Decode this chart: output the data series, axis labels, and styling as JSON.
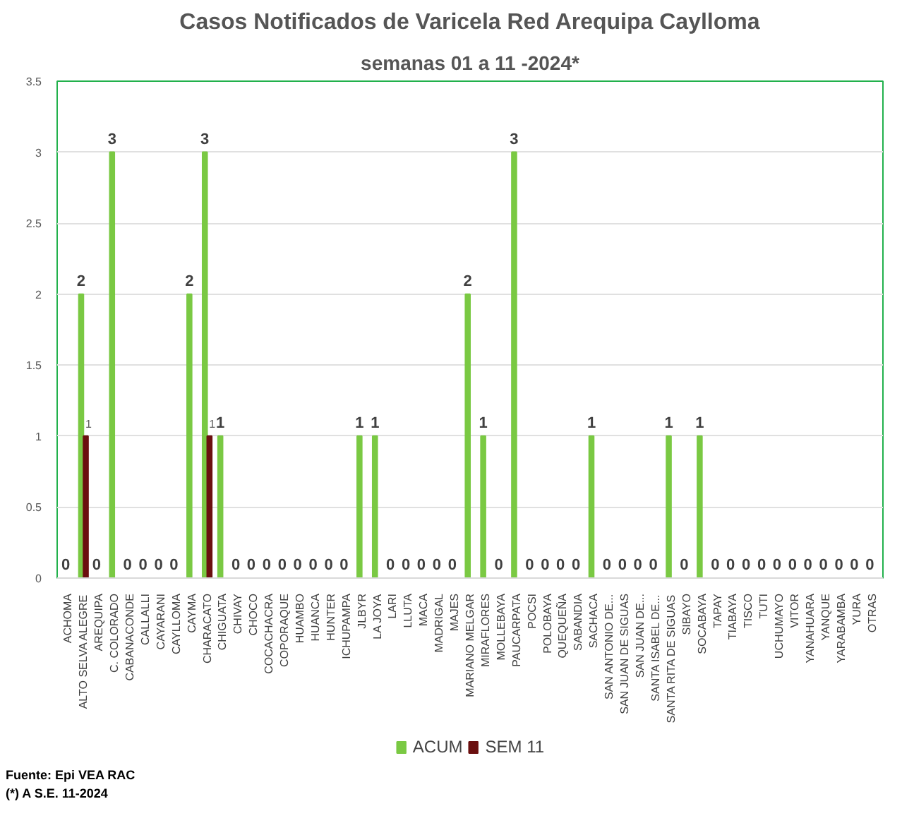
{
  "chart_data": {
    "type": "bar",
    "title": "Casos Notificados de Varicela Red Arequipa Caylloma",
    "subtitle": "semanas 01 a 11 -2024*",
    "categories": [
      "ACHOMA",
      "ALTO SELVA ALEGRE",
      "AREQUIPA",
      "C. COLORADO",
      "CABANACONDE",
      "CALLALLI",
      "CAYARANI",
      "CAYLLOMA",
      "CAYMA",
      "CHARACATO",
      "CHIGUATA",
      "CHIVAY",
      "CHOCO",
      "COCACHACRA",
      "COPORAQUE",
      "HUAMBO",
      "HUANCA",
      "HUNTER",
      "ICHUPAMPA",
      "JLBYR",
      "LA JOYA",
      "LARI",
      "LLUTA",
      "MACA",
      "MADRIGAL",
      "MAJES",
      "MARIANO MELGAR",
      "MIRAFLORES",
      "MOLLEBAYA",
      "PAUCARPATA",
      "POCSI",
      "POLOBAYA",
      "QUEQUEÑA",
      "SABANDIA",
      "SACHACA",
      "SAN ANTONIO DE...",
      "SAN JUAN DE SIGUAS",
      "SAN JUAN DE...",
      "SANTA ISABEL DE...",
      "SANTA RITA DE SIGUAS",
      "SIBAYO",
      "SOCABAYA",
      "TAPAY",
      "TIABAYA",
      "TISCO",
      "TUTI",
      "UCHUMAYO",
      "VITOR",
      "YANAHUARA",
      "YANQUE",
      "YARABAMBA",
      "YURA",
      "OTRAS"
    ],
    "series": [
      {
        "name": "ACUM",
        "color": "#7ac943",
        "values": [
          0,
          2,
          0,
          3,
          0,
          0,
          0,
          0,
          2,
          3,
          1,
          0,
          0,
          0,
          0,
          0,
          0,
          0,
          0,
          1,
          1,
          0,
          0,
          0,
          0,
          0,
          2,
          1,
          0,
          3,
          0,
          0,
          0,
          0,
          1,
          0,
          0,
          0,
          0,
          1,
          0,
          1,
          0,
          0,
          0,
          0,
          0,
          0,
          0,
          0,
          0,
          0,
          0
        ],
        "data_labels": true
      },
      {
        "name": "SEM 11",
        "color": "#6b0f0f",
        "values": [
          0,
          1,
          0,
          0,
          0,
          0,
          0,
          0,
          0,
          1,
          0,
          0,
          0,
          0,
          0,
          0,
          0,
          0,
          0,
          0,
          0,
          0,
          0,
          0,
          0,
          0,
          0,
          0,
          0,
          0,
          0,
          0,
          0,
          0,
          0,
          0,
          0,
          0,
          0,
          0,
          0,
          0,
          0,
          0,
          0,
          0,
          0,
          0,
          0,
          0,
          0,
          0,
          0
        ],
        "value_labels": [
          null,
          "1",
          null,
          null,
          null,
          null,
          null,
          null,
          null,
          "1",
          null,
          null,
          null,
          null,
          null,
          null,
          null,
          null,
          null,
          null,
          null,
          null,
          null,
          null,
          null,
          null,
          null,
          null,
          null,
          null,
          null,
          null,
          null,
          null,
          null,
          null,
          null,
          null,
          null,
          null,
          null,
          null,
          null,
          null,
          null,
          null,
          null,
          null,
          null,
          null,
          null,
          null,
          null
        ]
      }
    ],
    "ylim": [
      0,
      3.5
    ],
    "yticks": [
      0,
      0.5,
      1,
      1.5,
      2,
      2.5,
      3,
      3.5
    ],
    "grid": "y",
    "legend": "bottom",
    "annotations": [
      "Fuente: Epi VEA RAC",
      "(*) A S.E. 11-2024"
    ]
  }
}
